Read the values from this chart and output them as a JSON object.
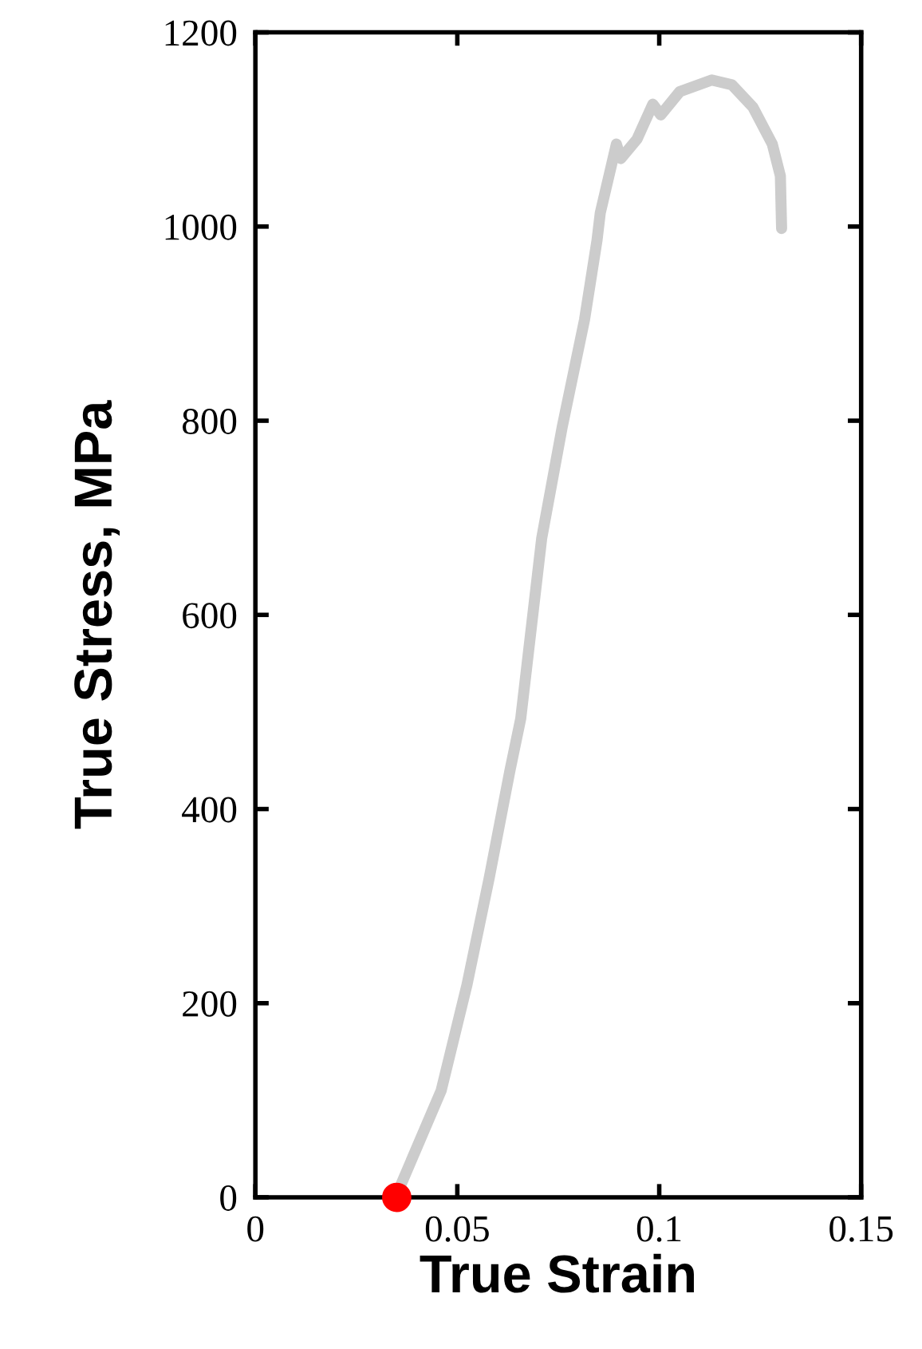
{
  "chart_data": {
    "type": "line",
    "xlabel": "True Strain",
    "ylabel": "True Stress, MPa",
    "xlim": [
      0,
      0.15
    ],
    "ylim": [
      0,
      1200
    ],
    "xticks": [
      0,
      0.05,
      0.1,
      0.15
    ],
    "yticks": [
      0,
      200,
      400,
      600,
      800,
      1000,
      1200
    ],
    "grid": false,
    "line_style": "solid",
    "series": [
      {
        "marker": "none",
        "color": "#cccccc",
        "x": [
          0.0347,
          0.046,
          0.0524,
          0.0579,
          0.063,
          0.0657,
          0.0709,
          0.076,
          0.0815,
          0.0846,
          0.0854,
          0.0894,
          0.0905,
          0.0945,
          0.0984,
          0.1004,
          0.1051,
          0.113,
          0.118,
          0.1232,
          0.128,
          0.13,
          0.1303
        ],
        "values": [
          0,
          110,
          219,
          329,
          439,
          493,
          679,
          794,
          904,
          986,
          1014,
          1085,
          1070,
          1090,
          1126,
          1115,
          1139,
          1151,
          1146,
          1123,
          1085,
          1052,
          998
        ]
      },
      {
        "type": "scatter",
        "marker": "circle",
        "color": "#ff0000",
        "x": [
          0.035
        ],
        "values": [
          0
        ]
      }
    ]
  }
}
